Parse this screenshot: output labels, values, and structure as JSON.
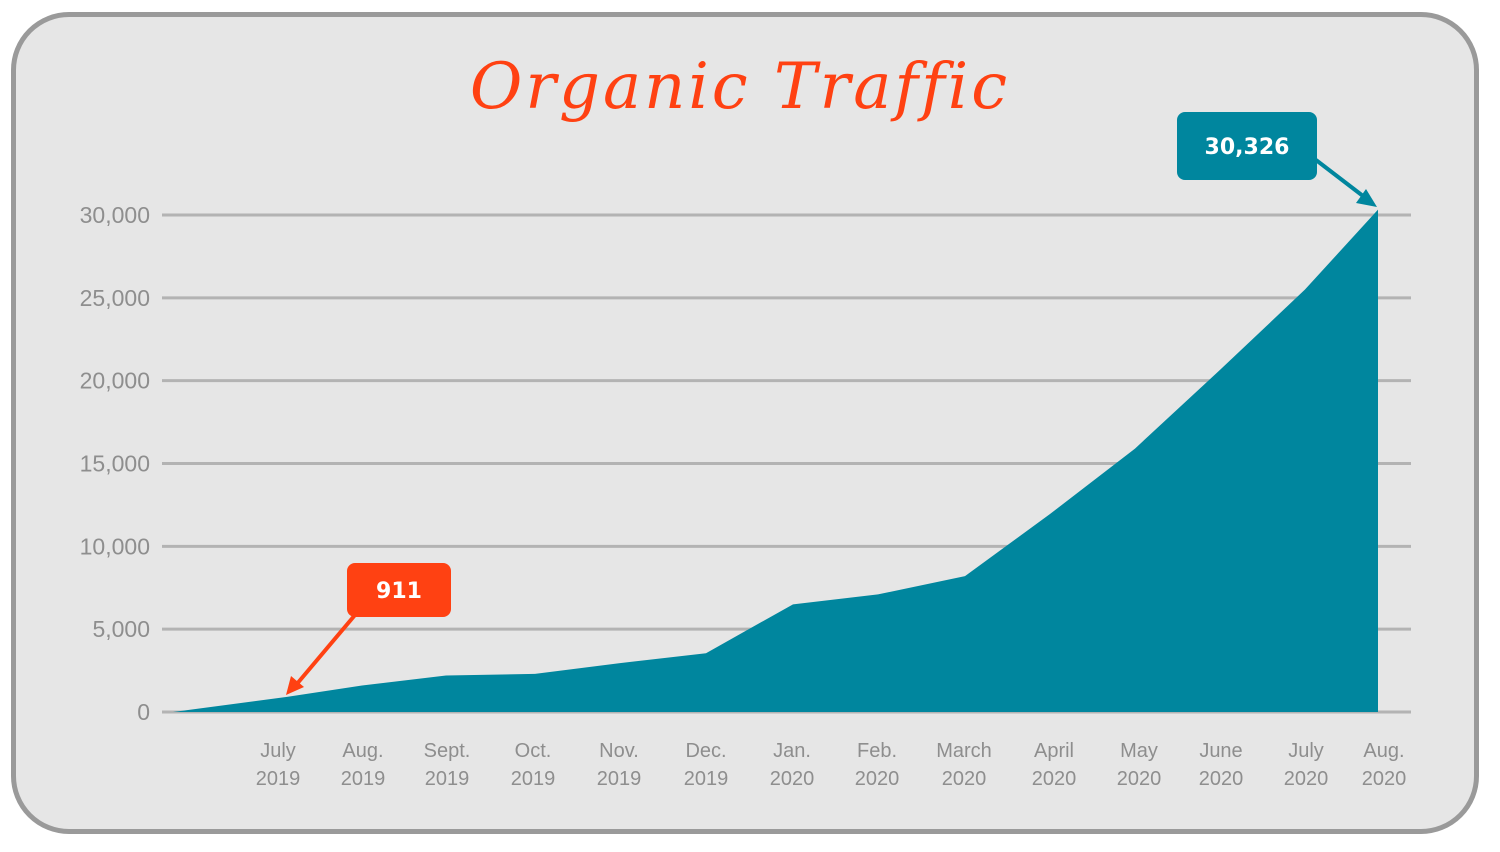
{
  "title": "Organic Traffic",
  "colors": {
    "background": "#e6e6e6",
    "frame_border": "#9a9a9a",
    "area_fill": "#00869e",
    "title": "#ff4112",
    "callout_start": "#ff4112",
    "callout_end": "#00869e",
    "gridline": "#b3b3b3",
    "tick_text": "#8e8e8e"
  },
  "y_axis": {
    "ticks": [
      "0",
      "5,000",
      "10,000",
      "15,000",
      "20,000",
      "25,000",
      "30,000"
    ]
  },
  "x_axis": {
    "ticks": [
      {
        "month": "July",
        "year": "2019"
      },
      {
        "month": "Aug.",
        "year": "2019"
      },
      {
        "month": "Sept.",
        "year": "2019"
      },
      {
        "month": "Oct.",
        "year": "2019"
      },
      {
        "month": "Nov.",
        "year": "2019"
      },
      {
        "month": "Dec.",
        "year": "2019"
      },
      {
        "month": "Jan.",
        "year": "2020"
      },
      {
        "month": "Feb.",
        "year": "2020"
      },
      {
        "month": "March",
        "year": "2020"
      },
      {
        "month": "April",
        "year": "2020"
      },
      {
        "month": "May",
        "year": "2020"
      },
      {
        "month": "June",
        "year": "2020"
      },
      {
        "month": "July",
        "year": "2020"
      },
      {
        "month": "Aug.",
        "year": "2020"
      }
    ]
  },
  "callouts": {
    "start": {
      "label": "911"
    },
    "end": {
      "label": "30,326"
    }
  },
  "chart_data": {
    "type": "area",
    "title": "Organic Traffic",
    "xlabel": "",
    "ylabel": "",
    "categories": [
      "July 2019",
      "Aug. 2019",
      "Sept. 2019",
      "Oct. 2019",
      "Nov. 2019",
      "Dec. 2019",
      "Jan. 2020",
      "Feb. 2020",
      "March 2020",
      "April 2020",
      "May 2020",
      "June 2020",
      "July 2020",
      "Aug. 2020"
    ],
    "series": [
      {
        "name": "Organic Traffic",
        "values": [
          911,
          1600,
          2200,
          2300,
          2950,
          3550,
          6500,
          7100,
          8200,
          11950,
          15900,
          20650,
          25500,
          30326
        ]
      }
    ],
    "starting_value": 0,
    "ylim": [
      0,
      30000
    ],
    "yticks": [
      0,
      5000,
      10000,
      15000,
      20000,
      25000,
      30000
    ],
    "grid": true,
    "legend": "none",
    "annotations": [
      {
        "category": "July 2019",
        "text": "911",
        "color": "#ff4112"
      },
      {
        "category": "Aug. 2020",
        "text": "30,326",
        "color": "#00869e"
      }
    ]
  }
}
